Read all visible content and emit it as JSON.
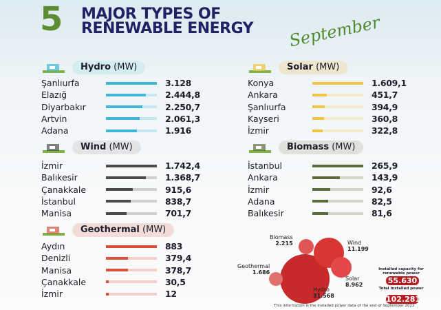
{
  "header": {
    "number": "5",
    "line1": "MAJOR TYPES OF",
    "line2": "RENEWABLE ENERGY",
    "month": "September"
  },
  "chart_data": [
    {
      "type": "bar",
      "title": "Hydro",
      "unit": "(MW)",
      "color": "#3fb6d3",
      "track": "#c7e8f0",
      "categories": [
        "Şanlıurfa",
        "Elazığ",
        "Diyarbakır",
        "Artvin",
        "Adana"
      ],
      "labels": [
        "3.128",
        "2.444,8",
        "2.250,7",
        "2.061,3",
        "1.916"
      ],
      "values": [
        3128,
        2444.8,
        2250.7,
        2061.3,
        1916
      ]
    },
    {
      "type": "bar",
      "title": "Wind",
      "unit": "(MW)",
      "color": "#4a4a4a",
      "track": "#cfcfcf",
      "categories": [
        "İzmir",
        "Balıkesir",
        "Çanakkale",
        "İstanbul",
        "Manisa"
      ],
      "labels": [
        "1.742,4",
        "1.368,7",
        "915,6",
        "838,7",
        "701,7"
      ],
      "values": [
        1742.4,
        1368.7,
        915.6,
        838.7,
        701.7
      ]
    },
    {
      "type": "bar",
      "title": "Geothermal",
      "unit": "(MW)",
      "color": "#d4533a",
      "track": "#f3cfc8",
      "categories": [
        "Aydın",
        "Denizli",
        "Manisa",
        "Çanakkale",
        "İzmir"
      ],
      "labels": [
        "883",
        "379,4",
        "378,7",
        "30,5",
        "12"
      ],
      "values": [
        883,
        379.4,
        378.7,
        30.5,
        12
      ]
    },
    {
      "type": "bar",
      "title": "Solar",
      "unit": "(MW)",
      "color": "#f2c443",
      "track": "#f6ebc8",
      "categories": [
        "Konya",
        "Ankara",
        "Şanlıurfa",
        "Kayseri",
        "İzmir"
      ],
      "labels": [
        "1.609,1",
        "451,7",
        "394,9",
        "360,8",
        "322,8"
      ],
      "values": [
        1609.1,
        451.7,
        394.9,
        360.8,
        322.8
      ]
    },
    {
      "type": "bar",
      "title": "Biomass",
      "unit": "(MW)",
      "color": "#5d6b3a",
      "track": "#d3d6cc",
      "categories": [
        "İstanbul",
        "Ankara",
        "İzmir",
        "Adana",
        "Balıkesir"
      ],
      "labels": [
        "265,9",
        "143,9",
        "92,6",
        "82,5",
        "81,6"
      ],
      "values": [
        265.9,
        143.9,
        92.6,
        82.5,
        81.6
      ]
    },
    {
      "type": "bubble",
      "items": [
        {
          "name": "Hydro",
          "label": "31.568",
          "value": 31568,
          "color": "#c62a2a"
        },
        {
          "name": "Wind",
          "label": "11.199",
          "value": 11199,
          "color": "#d83535"
        },
        {
          "name": "Solar",
          "label": "8.962",
          "value": 8962,
          "color": "#e44848"
        },
        {
          "name": "Biomass",
          "label": "2.215",
          "value": 2215,
          "color": "#e05555"
        },
        {
          "name": "Geothermal",
          "label": "1.686",
          "value": 1686,
          "color": "#e07070"
        }
      ]
    }
  ],
  "totals": {
    "renewable_label": "Installed capacity for renewable power",
    "renewable_value": "55.630",
    "total_label": "Total installed power",
    "total_value": "102.281"
  },
  "footer": "This information is the installed power data of the end of September 2022"
}
